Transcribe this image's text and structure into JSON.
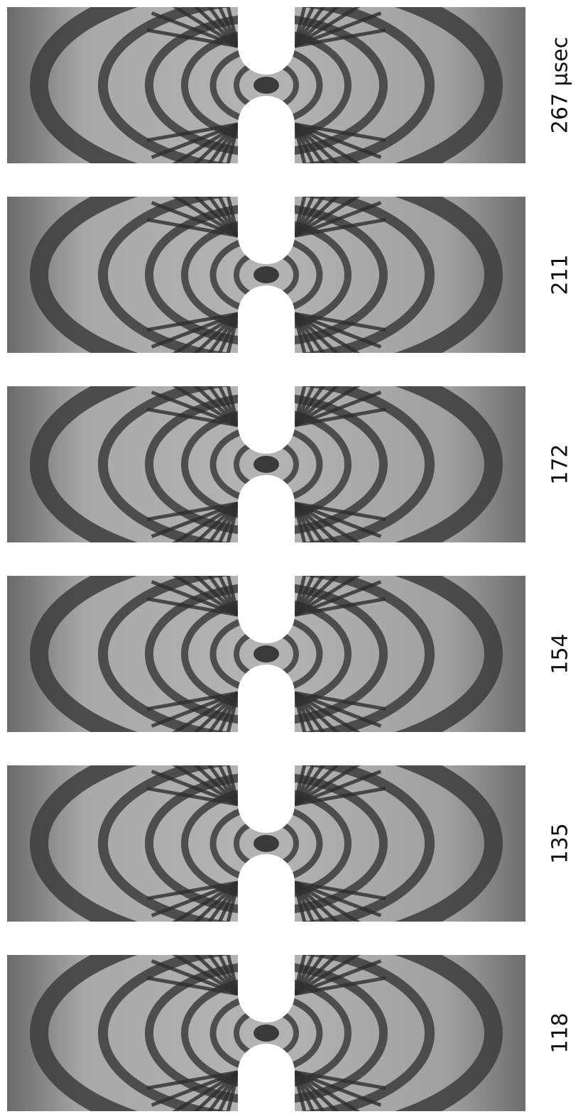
{
  "frames": [
    {
      "label": "267 μsec"
    },
    {
      "label": "211"
    },
    {
      "label": "172"
    },
    {
      "label": "154"
    },
    {
      "label": "135"
    },
    {
      "label": "118"
    }
  ]
}
